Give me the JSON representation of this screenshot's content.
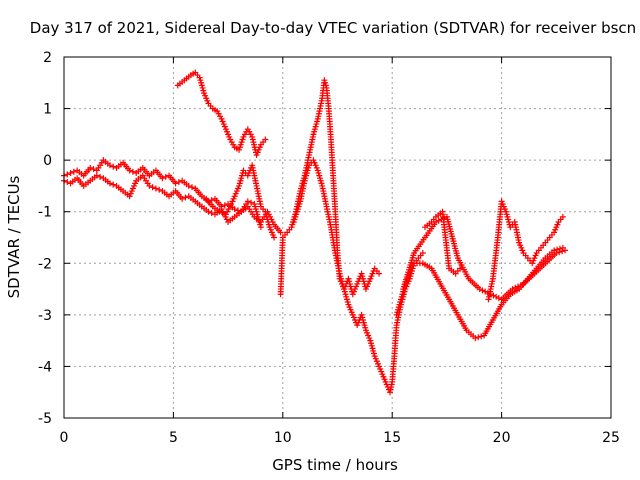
{
  "chart_data": {
    "type": "scatter",
    "title": "Day 317 of 2021, Sidereal Day-to-day VTEC variation (SDTVAR) for receiver bscn",
    "xlabel": "GPS time / hours",
    "ylabel": "SDTVAR / TECUs",
    "xlim": [
      0,
      25
    ],
    "ylim": [
      -5,
      2
    ],
    "xticks": [
      "0",
      "5",
      "10",
      "15",
      "20",
      "25"
    ],
    "yticks": [
      "2",
      "1",
      "0",
      "-1",
      "-2",
      "-3",
      "-4",
      "-5"
    ],
    "grid": true,
    "marker": "+",
    "color": "#ff0000",
    "series": [
      {
        "x": [
          0.0,
          0.3,
          0.6,
          0.9,
          1.2,
          1.5,
          1.8,
          2.1,
          2.4,
          2.7,
          3.0,
          3.3,
          3.6,
          3.9,
          4.2,
          4.5,
          4.8,
          5.1,
          5.4,
          5.7,
          6.0,
          6.3,
          6.6,
          6.9,
          7.2,
          7.5,
          7.8,
          8.1,
          8.4,
          8.7,
          9.0,
          9.3,
          9.6,
          9.9
        ],
        "y": [
          -0.3,
          -0.25,
          -0.2,
          -0.3,
          -0.15,
          -0.2,
          0.0,
          -0.1,
          -0.15,
          -0.05,
          -0.2,
          -0.25,
          -0.15,
          -0.3,
          -0.2,
          -0.35,
          -0.3,
          -0.45,
          -0.4,
          -0.5,
          -0.55,
          -0.7,
          -0.8,
          -0.75,
          -0.9,
          -0.85,
          -0.95,
          -1.0,
          -0.9,
          -1.1,
          -1.2,
          -1.0,
          -1.25,
          -1.4
        ]
      },
      {
        "x": [
          0.0,
          0.3,
          0.6,
          0.9,
          1.2,
          1.5,
          1.8,
          2.1,
          2.4,
          2.7,
          3.0,
          3.3,
          3.6,
          3.9,
          4.2,
          4.5,
          4.8,
          5.1,
          5.4,
          5.7,
          6.0,
          6.3,
          6.6,
          6.9,
          7.2,
          7.5,
          7.8,
          8.1,
          8.4,
          8.7,
          9.0
        ],
        "y": [
          -0.4,
          -0.45,
          -0.35,
          -0.5,
          -0.4,
          -0.3,
          -0.35,
          -0.45,
          -0.5,
          -0.6,
          -0.7,
          -0.4,
          -0.3,
          -0.5,
          -0.55,
          -0.6,
          -0.7,
          -0.6,
          -0.75,
          -0.7,
          -0.8,
          -0.9,
          -1.0,
          -1.05,
          -0.95,
          -1.2,
          -1.1,
          -1.0,
          -0.8,
          -0.85,
          -1.3
        ]
      },
      {
        "x": [
          5.2,
          5.5,
          5.8,
          6.0,
          6.2,
          6.4,
          6.6,
          6.8,
          7.0,
          7.2,
          7.4,
          7.6,
          7.8,
          8.0,
          8.2,
          8.4,
          8.6,
          8.8,
          9.0,
          9.2
        ],
        "y": [
          1.45,
          1.55,
          1.65,
          1.7,
          1.6,
          1.3,
          1.1,
          1.0,
          0.95,
          0.8,
          0.6,
          0.4,
          0.25,
          0.2,
          0.45,
          0.6,
          0.45,
          0.1,
          0.3,
          0.4
        ]
      },
      {
        "x": [
          6.5,
          6.8,
          7.1,
          7.4,
          7.7,
          8.0,
          8.2,
          8.4,
          8.6,
          8.8,
          9.0,
          9.2,
          9.4,
          9.6
        ],
        "y": [
          -0.75,
          -0.9,
          -1.0,
          -1.05,
          -0.8,
          -0.5,
          -0.2,
          -0.3,
          -0.1,
          -0.5,
          -0.9,
          -1.0,
          -1.3,
          -1.5
        ]
      },
      {
        "x": [
          9.9,
          10.0,
          10.2,
          10.4,
          10.6,
          10.8,
          11.0,
          11.2,
          11.4,
          11.6,
          11.8,
          11.9,
          12.0,
          12.1,
          12.2,
          12.3,
          12.4,
          12.5,
          12.6,
          12.8,
          13.0,
          13.2,
          13.4,
          13.6,
          13.8,
          14.0,
          14.2,
          14.4,
          14.6,
          14.8,
          14.9,
          15.0,
          15.1,
          15.2,
          15.4,
          15.6,
          15.8,
          16.0,
          16.2,
          16.4
        ],
        "y": [
          -2.6,
          -1.5,
          -1.4,
          -1.3,
          -1.0,
          -0.6,
          -0.3,
          0.1,
          0.5,
          0.8,
          1.2,
          1.55,
          1.4,
          1.0,
          0.4,
          -0.3,
          -1.0,
          -1.8,
          -2.3,
          -2.5,
          -2.8,
          -3.0,
          -3.2,
          -3.0,
          -3.3,
          -3.5,
          -3.8,
          -4.0,
          -4.2,
          -4.4,
          -4.5,
          -4.3,
          -3.8,
          -3.2,
          -2.8,
          -2.5,
          -2.3,
          -2.0,
          -1.9,
          -1.8
        ]
      },
      {
        "x": [
          10.5,
          10.8,
          11.0,
          11.2,
          11.4,
          11.6,
          11.8,
          12.0,
          12.2,
          12.4,
          12.6,
          12.8,
          13.0,
          13.2,
          13.4,
          13.6,
          13.8,
          14.0,
          14.2,
          14.4
        ],
        "y": [
          -1.2,
          -0.8,
          -0.4,
          -0.1,
          0.0,
          -0.2,
          -0.5,
          -0.9,
          -1.3,
          -1.8,
          -2.2,
          -2.5,
          -2.3,
          -2.6,
          -2.4,
          -2.2,
          -2.5,
          -2.3,
          -2.1,
          -2.2
        ]
      },
      {
        "x": [
          15.2,
          15.6,
          16.0,
          16.4,
          16.8,
          17.2,
          17.6,
          18.0,
          18.4,
          18.8,
          19.2,
          19.6,
          20.0,
          20.4,
          20.8,
          21.2,
          21.6,
          22.0,
          22.4,
          22.8
        ],
        "y": [
          -3.0,
          -2.4,
          -2.0,
          -2.0,
          -2.1,
          -2.4,
          -2.7,
          -3.0,
          -3.3,
          -3.45,
          -3.4,
          -3.1,
          -2.8,
          -2.6,
          -2.5,
          -2.3,
          -2.1,
          -1.9,
          -1.75,
          -1.7
        ]
      },
      {
        "x": [
          15.5,
          16.0,
          16.5,
          17.0,
          17.5,
          18.0,
          18.5,
          19.0,
          19.5,
          20.0,
          20.5,
          21.0,
          21.5,
          22.0,
          22.5,
          22.9
        ],
        "y": [
          -2.5,
          -1.8,
          -1.5,
          -1.2,
          -1.1,
          -1.9,
          -2.3,
          -2.5,
          -2.6,
          -2.7,
          -2.5,
          -2.4,
          -2.2,
          -2.0,
          -1.8,
          -1.75
        ]
      },
      {
        "x": [
          16.5,
          16.8,
          17.0,
          17.3,
          17.6,
          17.9,
          18.1
        ],
        "y": [
          -1.3,
          -1.2,
          -1.1,
          -1.0,
          -2.1,
          -2.2,
          -2.1
        ]
      },
      {
        "x": [
          19.4,
          19.6,
          19.8,
          20.0,
          20.2,
          20.4,
          20.6,
          20.8,
          21.0,
          21.2,
          21.4,
          21.6,
          21.8,
          22.0,
          22.2,
          22.4,
          22.6,
          22.8
        ],
        "y": [
          -2.7,
          -2.3,
          -1.6,
          -0.8,
          -1.0,
          -1.3,
          -1.2,
          -1.6,
          -1.8,
          -1.9,
          -2.0,
          -1.8,
          -1.7,
          -1.6,
          -1.5,
          -1.4,
          -1.2,
          -1.1
        ]
      }
    ]
  }
}
